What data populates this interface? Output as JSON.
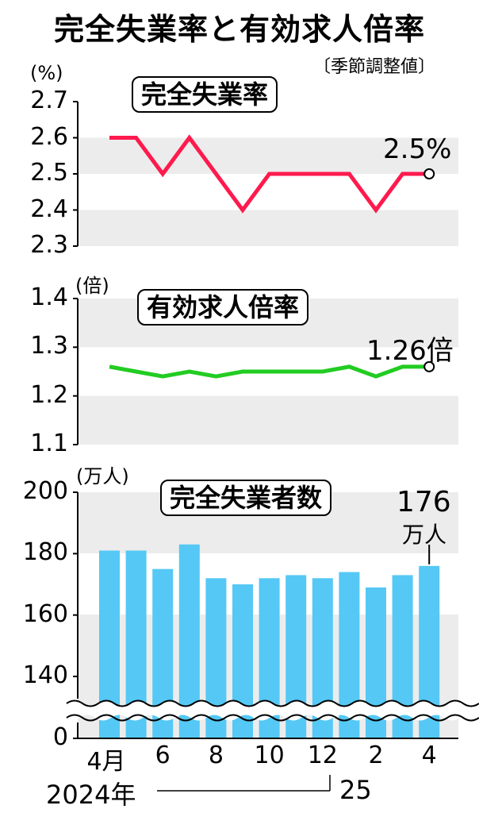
{
  "title": "完全失業率と有効求人倍率",
  "note": "〔季節調整値〕",
  "chart_data": [
    {
      "type": "line",
      "label": "完全失業率",
      "unit": "(%)",
      "ylim": [
        2.3,
        2.7
      ],
      "yticks": [
        "2.3",
        "2.4",
        "2.5",
        "2.6",
        "2.7"
      ],
      "color": "#ff1a4d",
      "values": [
        2.6,
        2.6,
        2.5,
        2.6,
        2.5,
        2.4,
        2.5,
        2.5,
        2.5,
        2.5,
        2.4,
        2.5,
        2.5
      ],
      "annotation": "2.5%"
    },
    {
      "type": "line",
      "label": "有効求人倍率",
      "unit": "(倍)",
      "ylim": [
        1.1,
        1.4
      ],
      "yticks": [
        "1.1",
        "1.2",
        "1.3",
        "1.4"
      ],
      "color": "#22cc22",
      "values": [
        1.26,
        1.25,
        1.24,
        1.25,
        1.24,
        1.25,
        1.25,
        1.25,
        1.25,
        1.26,
        1.24,
        1.26,
        1.26
      ],
      "annotation": "1.26倍"
    },
    {
      "type": "bar",
      "label": "完全失業者数",
      "unit": "(万人)",
      "yticks": [
        "0",
        "140",
        "160",
        "180",
        "200"
      ],
      "color": "#55c8f5",
      "values": [
        181,
        181,
        175,
        183,
        172,
        170,
        172,
        173,
        172,
        174,
        169,
        173,
        176
      ],
      "annotation_value": "176",
      "annotation_unit": "万人"
    }
  ],
  "x_labels": [
    "4月",
    "6",
    "8",
    "10",
    "12",
    "2",
    "4"
  ],
  "year_start": "2024年",
  "year_end": "25"
}
